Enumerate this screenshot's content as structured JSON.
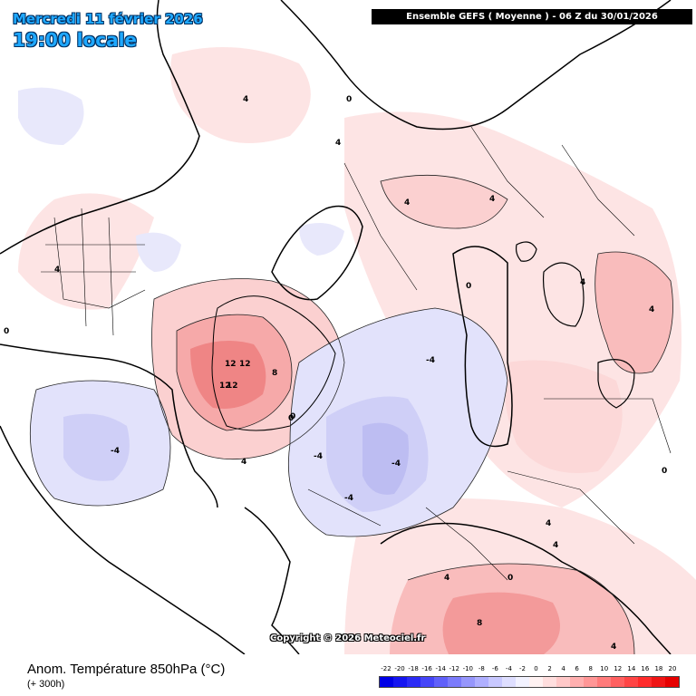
{
  "header": {
    "date_label": "Mercredi 11 février 2026",
    "time_label": "19:00 locale",
    "model_banner": "Ensemble GEFS  ( Moyenne )  - 06 Z du 30/01/2026"
  },
  "footer": {
    "title": "Anom. Température 850hPa (°C)",
    "lead": "(+ 300h)",
    "copyright": "Copyright © 2026 Meteociel.fr"
  },
  "legend": {
    "labels": [
      "-22",
      "-20",
      "-18",
      "-16",
      "-14",
      "-12",
      "-10",
      "-8",
      "-6",
      "-4",
      "-2",
      "0",
      "2",
      "4",
      "6",
      "8",
      "10",
      "12",
      "14",
      "16",
      "18",
      "20"
    ],
    "colors": [
      "#0000e6",
      "#1515f0",
      "#2b2bf5",
      "#4545f8",
      "#6060fa",
      "#7b7bfb",
      "#9696fc",
      "#afafff",
      "#c8c8ff",
      "#dedeff",
      "#f2f2ff",
      "#fff2f2",
      "#ffdede",
      "#ffc8c8",
      "#ffafaf",
      "#ff9696",
      "#ff7b7b",
      "#ff6060",
      "#ff4545",
      "#ff2b2b",
      "#f01515",
      "#e60000"
    ]
  },
  "map": {
    "contour_labels": [
      "12",
      "12",
      "12",
      "12",
      "8",
      "4",
      "4",
      "4",
      "4",
      "4",
      "4",
      "4",
      "4",
      "4",
      "0",
      "0",
      "0",
      "0",
      "0",
      "0",
      "-4",
      "-4",
      "-4",
      "-4",
      "-4",
      "8",
      "4",
      "4",
      "4",
      "0"
    ]
  }
}
